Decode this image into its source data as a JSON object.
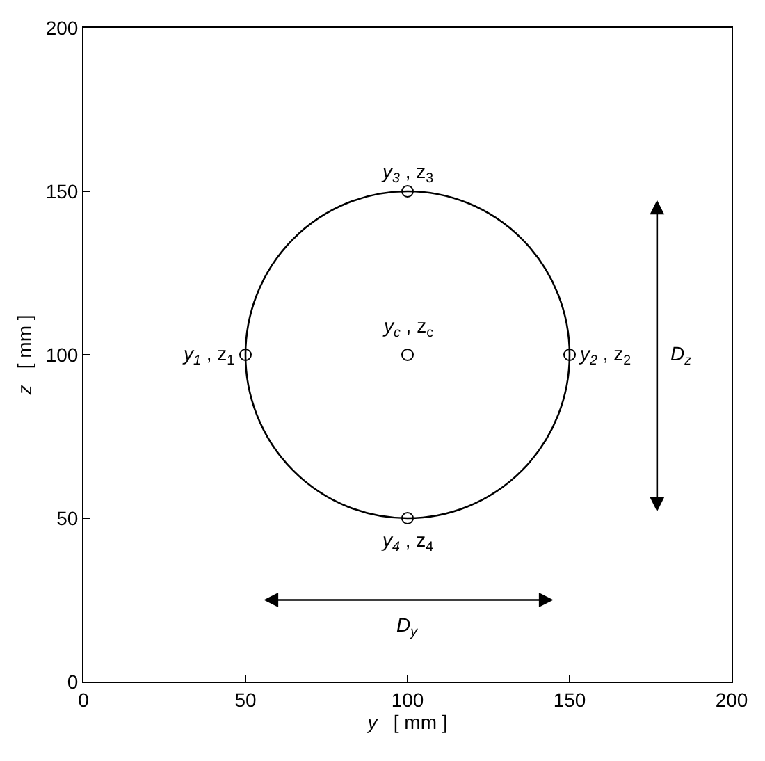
{
  "chart_data": {
    "type": "scatter",
    "xlabel": "y   [ mm ]",
    "ylabel": "z   [ mm ]",
    "xlim": [
      0,
      200
    ],
    "ylim": [
      0,
      200
    ],
    "xticks": [
      0,
      50,
      100,
      150,
      200
    ],
    "yticks": [
      0,
      50,
      100,
      150,
      200
    ],
    "grid": false,
    "series": [
      {
        "color": "#000000",
        "marker": "circle",
        "x": [
          50,
          150,
          100,
          100,
          100
        ],
        "values": [
          100,
          100,
          150,
          50,
          100
        ]
      }
    ],
    "annotations": [
      {
        "text": "y$_{1}$ , z$_{1}$",
        "x": 50,
        "y": 100
      },
      {
        "text": "y$_{2}$ , z$_{2}$",
        "x": 150,
        "y": 100
      },
      {
        "text": "y$_{3}$ , z$_{3}$",
        "x": 100,
        "y": 150
      },
      {
        "text": "y$_{4}$ , z$_{4}$",
        "x": 100,
        "y": 50
      },
      {
        "text": "y$_{c}$ , z$_{c}$",
        "x": 100,
        "y": 100
      },
      "D$_{y}$",
      "D$_{z}$"
    ]
  }
}
